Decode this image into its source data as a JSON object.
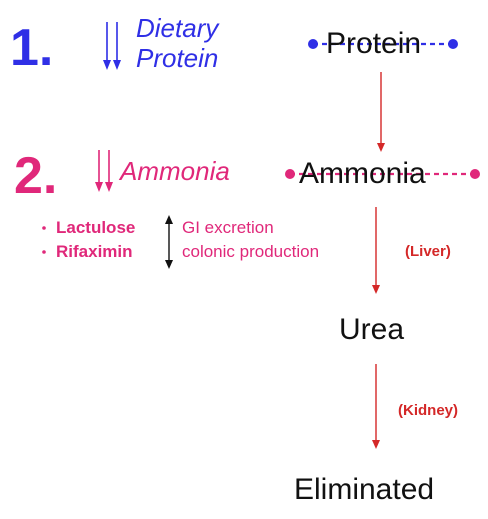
{
  "step1": {
    "number": "1.",
    "line1": "Dietary",
    "line2": "Protein"
  },
  "step2": {
    "number": "2.",
    "label": "Ammonia"
  },
  "treatments": [
    {
      "drug": "Lactulose",
      "effect": "GI excretion"
    },
    {
      "drug": "Rifaximin",
      "effect": "colonic production"
    }
  ],
  "pathway": {
    "nodes": [
      "Protein",
      "Ammonia",
      "Urea",
      "Eliminated"
    ],
    "organs": [
      "(Liver)",
      "(Kidney)"
    ]
  },
  "colors": {
    "blue": "#2f2fe6",
    "pink": "#e0287a",
    "red": "#d42828",
    "black": "#111111"
  }
}
